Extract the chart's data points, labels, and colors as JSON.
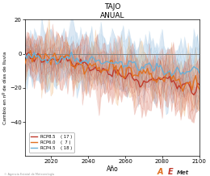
{
  "title": "TAJO",
  "subtitle": "ANUAL",
  "xlabel": "Año",
  "ylabel": "Cambio en nº de días de lluvia",
  "xlim": [
    2006,
    2100
  ],
  "ylim": [
    -60,
    20
  ],
  "yticks": [
    -40,
    -20,
    0,
    20
  ],
  "xticks": [
    2020,
    2040,
    2060,
    2080,
    2100
  ],
  "rcp85_color": "#c0392b",
  "rcp60_color": "#e07020",
  "rcp45_color": "#6aafd6",
  "rcp85_shade": "#e8a898",
  "rcp60_shade": "#f5cfa0",
  "rcp45_shade": "#b0cce8",
  "legend_labels": [
    "RCP8.5",
    "RCP6.0",
    "RCP4.5"
  ],
  "legend_counts": [
    "( 17 )",
    "(  7 )",
    "( 18 )"
  ],
  "n_rcp85": 17,
  "n_rcp60": 7,
  "n_rcp45": 18,
  "x_start": 2006,
  "x_end": 2100,
  "background_color": "#ffffff"
}
